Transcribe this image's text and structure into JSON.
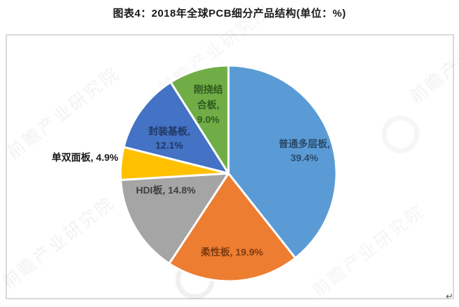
{
  "page": {
    "title": "图表4：2018年全球PCB细分产品结构(单位：%)",
    "corner_mark": "↵"
  },
  "watermark": {
    "text": "前瞻产业研究院"
  },
  "chart_data": {
    "type": "pie",
    "title": "图表4：2018年全球PCB细分产品结构(单位：%)",
    "unit": "%",
    "start_angle_deg": 0,
    "direction": "clockwise",
    "legend_position": "none",
    "slices": [
      {
        "name": "普通多层板",
        "value": 39.4,
        "color": "#5B9BD5",
        "label_text": "普通多层板,\n39.4%",
        "label_color": "#2a4a6b"
      },
      {
        "name": "柔性板",
        "value": 19.9,
        "color": "#ED7D31",
        "label_text": "柔性板, 19.9%",
        "label_color": "#7f3c10"
      },
      {
        "name": "HDI板",
        "value": 14.8,
        "color": "#A5A5A5",
        "label_text": "HDI板, 14.8%",
        "label_color": "#3f3f3f"
      },
      {
        "name": "单双面板",
        "value": 4.9,
        "color": "#FFC000",
        "label_text": "单双面板, 4.9%",
        "label_color": "#1a1a1a"
      },
      {
        "name": "封装基板",
        "value": 12.1,
        "color": "#4472C4",
        "label_text": "封装基板,\n12.1%",
        "label_color": "#1f3864"
      },
      {
        "name": "刚挠结合板",
        "value": 9.0,
        "color": "#70AD47",
        "label_text": "刚挠结\n合板,\n9.0%",
        "label_color": "#2f5a1d"
      }
    ]
  }
}
